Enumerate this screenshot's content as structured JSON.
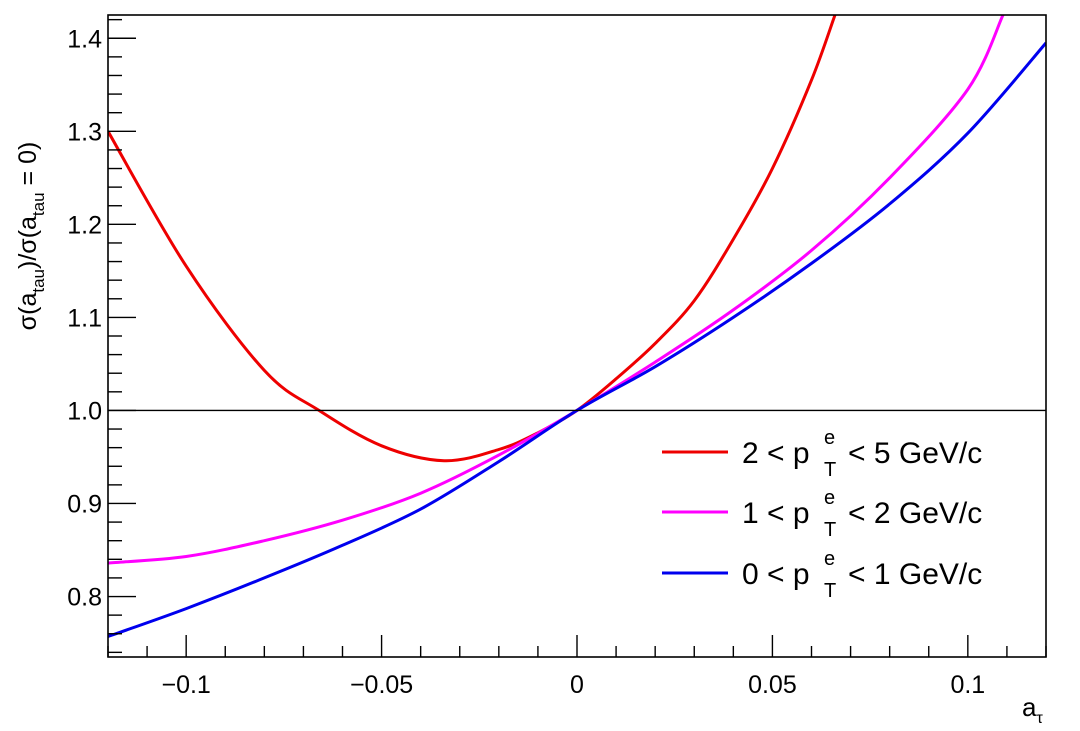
{
  "chart_data": {
    "type": "line",
    "xlabel": "τ",
    "ylabel": "σ(a_tau)/σ(a_tau = 0)",
    "xlim": [
      -0.12,
      0.12
    ],
    "ylim": [
      0.735,
      1.425
    ],
    "x_ticks": [
      -0.1,
      -0.05,
      0,
      0.05,
      0.1
    ],
    "x_tick_labels": [
      "−0.1",
      "−0.05",
      "0",
      "0.05",
      "0.1"
    ],
    "y_ticks": [
      0.8,
      0.9,
      1.0,
      1.1,
      1.2,
      1.3,
      1.4
    ],
    "y_tick_labels": [
      "0.8",
      "0.9",
      "1.0",
      "1.1",
      "1.2",
      "1.3",
      "1.4"
    ],
    "reference_line": 1.0,
    "grid": false,
    "legend_position": "bottom-right",
    "series": [
      {
        "name": "2 < p_T^e < 5 GeV/c",
        "legend": {
          "prefix": "2 < p",
          "sup": "e",
          "sub": "T",
          "suffix": "< 5 GeV/c"
        },
        "color": "#ee0000",
        "x": [
          -0.12,
          -0.1,
          -0.08,
          -0.066,
          -0.05,
          -0.034,
          -0.02,
          -0.01,
          0,
          0.01,
          0.02,
          0.03,
          0.04,
          0.05,
          0.06,
          0.066
        ],
        "y": [
          1.3,
          1.155,
          1.043,
          1.0,
          0.962,
          0.946,
          0.958,
          0.976,
          1.0,
          1.034,
          1.072,
          1.118,
          1.184,
          1.26,
          1.355,
          1.425
        ]
      },
      {
        "name": "1 < p_T^e < 2 GeV/c",
        "legend": {
          "prefix": "1 < p",
          "sup": "e",
          "sub": "T",
          "suffix": "< 2 GeV/c"
        },
        "color": "#ff00ff",
        "x": [
          -0.12,
          -0.1,
          -0.08,
          -0.06,
          -0.04,
          -0.02,
          0,
          0.02,
          0.04,
          0.06,
          0.08,
          0.1,
          0.109
        ],
        "y": [
          0.836,
          0.843,
          0.86,
          0.882,
          0.911,
          0.952,
          1.0,
          1.052,
          1.108,
          1.172,
          1.25,
          1.345,
          1.425
        ]
      },
      {
        "name": "0 < p_T^e < 1 GeV/c",
        "legend": {
          "prefix": "0 < p",
          "sup": "e",
          "sub": "T",
          "suffix": "<  1 GeV/c"
        },
        "color": "#0000ee",
        "x": [
          -0.12,
          -0.1,
          -0.08,
          -0.06,
          -0.04,
          -0.02,
          0,
          0.02,
          0.04,
          0.06,
          0.08,
          0.1,
          0.12
        ],
        "y": [
          0.757,
          0.787,
          0.82,
          0.855,
          0.894,
          0.945,
          1.0,
          1.047,
          1.1,
          1.158,
          1.222,
          1.298,
          1.395
        ]
      }
    ]
  }
}
